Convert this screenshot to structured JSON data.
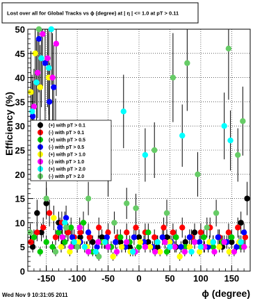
{
  "chart_data": {
    "type": "scatter",
    "title": "Lost over all for Global Tracks vs ϕ (degree) at | η | <= 1.0 at pT > 0.11",
    "xlabel": "ϕ (degree)",
    "ylabel": "Efficiency (%)",
    "xlim": [
      -180,
      180
    ],
    "ylim": [
      0,
      50
    ],
    "x_ticks": [
      -150,
      -100,
      -50,
      0,
      50,
      100,
      150
    ],
    "x_tick_labels": [
      "-150",
      "-100",
      "-50",
      "0",
      "50",
      "100",
      "150"
    ],
    "y_ticks": [
      0,
      5,
      10,
      15,
      20,
      25,
      30,
      35,
      40,
      45,
      50
    ],
    "y_tick_labels": [
      "0",
      "5",
      "10",
      "15",
      "20",
      "25",
      "30",
      "35",
      "40",
      "45",
      "50"
    ],
    "grid": true,
    "legend_position": "middle-left",
    "series": [
      {
        "name": "(+) with pT > 0.1",
        "color": "#000000",
        "points": [
          [
            -172,
            5
          ],
          [
            -165,
            12
          ],
          [
            -158,
            8
          ],
          [
            -150,
            14
          ],
          [
            -142,
            25
          ],
          [
            -135,
            29
          ],
          [
            -130,
            10
          ],
          [
            -122,
            6
          ],
          [
            -115,
            8
          ],
          [
            -105,
            6
          ],
          [
            -95,
            7
          ],
          [
            -85,
            5
          ],
          [
            -75,
            6
          ],
          [
            -60,
            7
          ],
          [
            -45,
            5
          ],
          [
            -30,
            6
          ],
          [
            -15,
            5
          ],
          [
            0,
            7
          ],
          [
            15,
            6
          ],
          [
            30,
            5
          ],
          [
            45,
            7
          ],
          [
            60,
            5
          ],
          [
            75,
            6
          ],
          [
            90,
            8
          ],
          [
            105,
            5
          ],
          [
            120,
            6
          ],
          [
            135,
            5
          ],
          [
            150,
            6
          ],
          [
            165,
            10
          ],
          [
            175,
            15
          ]
        ]
      },
      {
        "name": "(-) with pT > 0.1",
        "color": "#ff0000",
        "points": [
          [
            -175,
            6
          ],
          [
            -165,
            8
          ],
          [
            -155,
            9
          ],
          [
            -145,
            12
          ],
          [
            -135,
            7
          ],
          [
            -125,
            10
          ],
          [
            -115,
            8
          ],
          [
            -105,
            7
          ],
          [
            -95,
            8
          ],
          [
            -80,
            7
          ],
          [
            -65,
            9
          ],
          [
            -50,
            8
          ],
          [
            -35,
            7
          ],
          [
            -20,
            8
          ],
          [
            -5,
            9
          ],
          [
            10,
            8
          ],
          [
            25,
            7
          ],
          [
            40,
            9
          ],
          [
            55,
            8
          ],
          [
            70,
            9
          ],
          [
            85,
            7
          ],
          [
            100,
            8
          ],
          [
            115,
            9
          ],
          [
            130,
            7
          ],
          [
            145,
            8
          ],
          [
            160,
            9
          ],
          [
            172,
            7
          ]
        ]
      },
      {
        "name": "(+) with pT > 0.5",
        "color": "#00cc00",
        "points": [
          [
            -170,
            7
          ],
          [
            -160,
            4
          ],
          [
            -150,
            6
          ],
          [
            -140,
            5
          ],
          [
            -130,
            8
          ],
          [
            -120,
            6
          ],
          [
            -110,
            9
          ],
          [
            -100,
            5
          ],
          [
            -90,
            10
          ],
          [
            -75,
            4
          ],
          [
            -60,
            6
          ],
          [
            -45,
            5
          ],
          [
            -30,
            7
          ],
          [
            -15,
            6
          ],
          [
            0,
            5
          ],
          [
            15,
            8
          ],
          [
            30,
            6
          ],
          [
            45,
            4
          ],
          [
            60,
            7
          ],
          [
            75,
            5
          ],
          [
            90,
            6
          ],
          [
            105,
            7
          ],
          [
            120,
            5
          ],
          [
            135,
            6
          ],
          [
            150,
            7
          ],
          [
            165,
            5
          ]
        ]
      },
      {
        "name": "(-) with pT > 0.5",
        "color": "#0000ff",
        "points": [
          [
            -172,
            32
          ],
          [
            -162,
            48
          ],
          [
            -152,
            43
          ],
          [
            -145,
            35
          ],
          [
            -138,
            38
          ],
          [
            -128,
            9
          ],
          [
            -118,
            11
          ],
          [
            -108,
            7
          ],
          [
            -95,
            6
          ],
          [
            -82,
            8
          ],
          [
            -68,
            5
          ],
          [
            -52,
            7
          ],
          [
            -38,
            6
          ],
          [
            -22,
            5
          ],
          [
            -8,
            7
          ],
          [
            8,
            6
          ],
          [
            22,
            5
          ],
          [
            38,
            7
          ],
          [
            52,
            6
          ],
          [
            68,
            5
          ],
          [
            82,
            7
          ],
          [
            98,
            6
          ],
          [
            112,
            5
          ],
          [
            128,
            7
          ],
          [
            142,
            6
          ],
          [
            158,
            5
          ],
          [
            170,
            8
          ]
        ]
      },
      {
        "name": "(+) with pT > 1.0",
        "color": "#ffff00",
        "points": [
          [
            -175,
            37
          ],
          [
            -168,
            45
          ],
          [
            -160,
            38
          ],
          [
            -152,
            28
          ],
          [
            -146,
            40
          ],
          [
            -138,
            11
          ],
          [
            -126,
            5
          ],
          [
            -112,
            4
          ],
          [
            -98,
            6
          ],
          [
            -84,
            5
          ],
          [
            -70,
            4
          ],
          [
            -56,
            6
          ],
          [
            -42,
            3
          ],
          [
            -28,
            5
          ],
          [
            -14,
            4
          ],
          [
            2,
            6
          ],
          [
            18,
            5
          ],
          [
            34,
            4
          ],
          [
            50,
            6
          ],
          [
            66,
            3
          ],
          [
            82,
            5
          ],
          [
            98,
            4
          ],
          [
            114,
            6
          ],
          [
            130,
            5
          ],
          [
            146,
            4
          ],
          [
            162,
            6
          ]
        ]
      },
      {
        "name": "(-) with pT > 1.0",
        "color": "#ff00ff",
        "points": [
          [
            -170,
            34
          ],
          [
            -164,
            41
          ],
          [
            -156,
            49
          ],
          [
            -148,
            44
          ],
          [
            -140,
            40
          ],
          [
            -134,
            47
          ],
          [
            -124,
            7
          ],
          [
            -110,
            5
          ],
          [
            -96,
            9
          ],
          [
            -82,
            4
          ],
          [
            -66,
            6
          ],
          [
            -50,
            5
          ],
          [
            -36,
            4
          ],
          [
            -20,
            6
          ],
          [
            -6,
            4
          ],
          [
            10,
            5
          ],
          [
            26,
            4
          ],
          [
            42,
            6
          ],
          [
            58,
            5
          ],
          [
            74,
            4
          ],
          [
            90,
            6
          ],
          [
            106,
            5
          ],
          [
            122,
            4
          ],
          [
            138,
            6
          ],
          [
            154,
            4
          ],
          [
            170,
            5
          ]
        ]
      },
      {
        "name": "(+) with pT > 2.0",
        "color": "#00ffff",
        "points": [
          [
            -173,
            33
          ],
          [
            -166,
            39
          ],
          [
            -158,
            44
          ],
          [
            -146,
            42
          ],
          [
            -142,
            50
          ],
          [
            -120,
            10
          ],
          [
            -105,
            6
          ],
          [
            -88,
            5
          ],
          [
            -70,
            4
          ],
          [
            -55,
            6
          ],
          [
            -25,
            33
          ],
          [
            -10,
            4
          ],
          [
            10,
            24
          ],
          [
            30,
            6
          ],
          [
            50,
            5
          ],
          [
            70,
            28
          ],
          [
            85,
            4
          ],
          [
            100,
            5
          ],
          [
            120,
            6
          ],
          [
            138,
            30
          ],
          [
            148,
            27
          ],
          [
            165,
            6
          ]
        ]
      },
      {
        "name": "(-) with pT > 2.0",
        "color": "#66cc66",
        "points": [
          [
            -176,
            8
          ],
          [
            -162,
            50
          ],
          [
            -150,
            15
          ],
          [
            -135,
            4
          ],
          [
            -118,
            9
          ],
          [
            -100,
            5
          ],
          [
            -82,
            15
          ],
          [
            -65,
            3
          ],
          [
            -50,
            20
          ],
          [
            -40,
            10
          ],
          [
            -20,
            14
          ],
          [
            -5,
            13
          ],
          [
            25,
            25
          ],
          [
            45,
            12
          ],
          [
            55,
            40
          ],
          [
            78,
            43
          ],
          [
            95,
            20
          ],
          [
            110,
            9
          ],
          [
            125,
            12
          ],
          [
            145,
            46
          ],
          [
            160,
            24
          ],
          [
            168,
            31
          ]
        ]
      }
    ]
  },
  "footer": {
    "timestamp": "Wed Nov  9 10:31:05 2011"
  }
}
